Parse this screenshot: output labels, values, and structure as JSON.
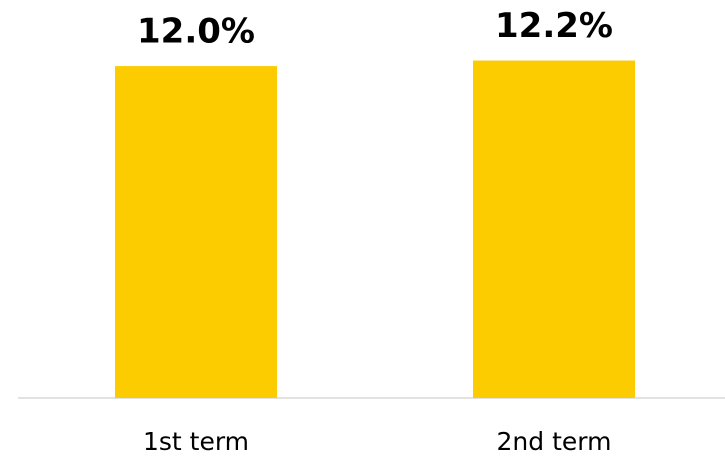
{
  "chart_data": {
    "type": "bar",
    "categories": [
      "1st term",
      "2nd term"
    ],
    "values": [
      12.0,
      12.2
    ],
    "value_labels": [
      "12.0%",
      "12.2%"
    ],
    "color": "#fccc00"
  }
}
